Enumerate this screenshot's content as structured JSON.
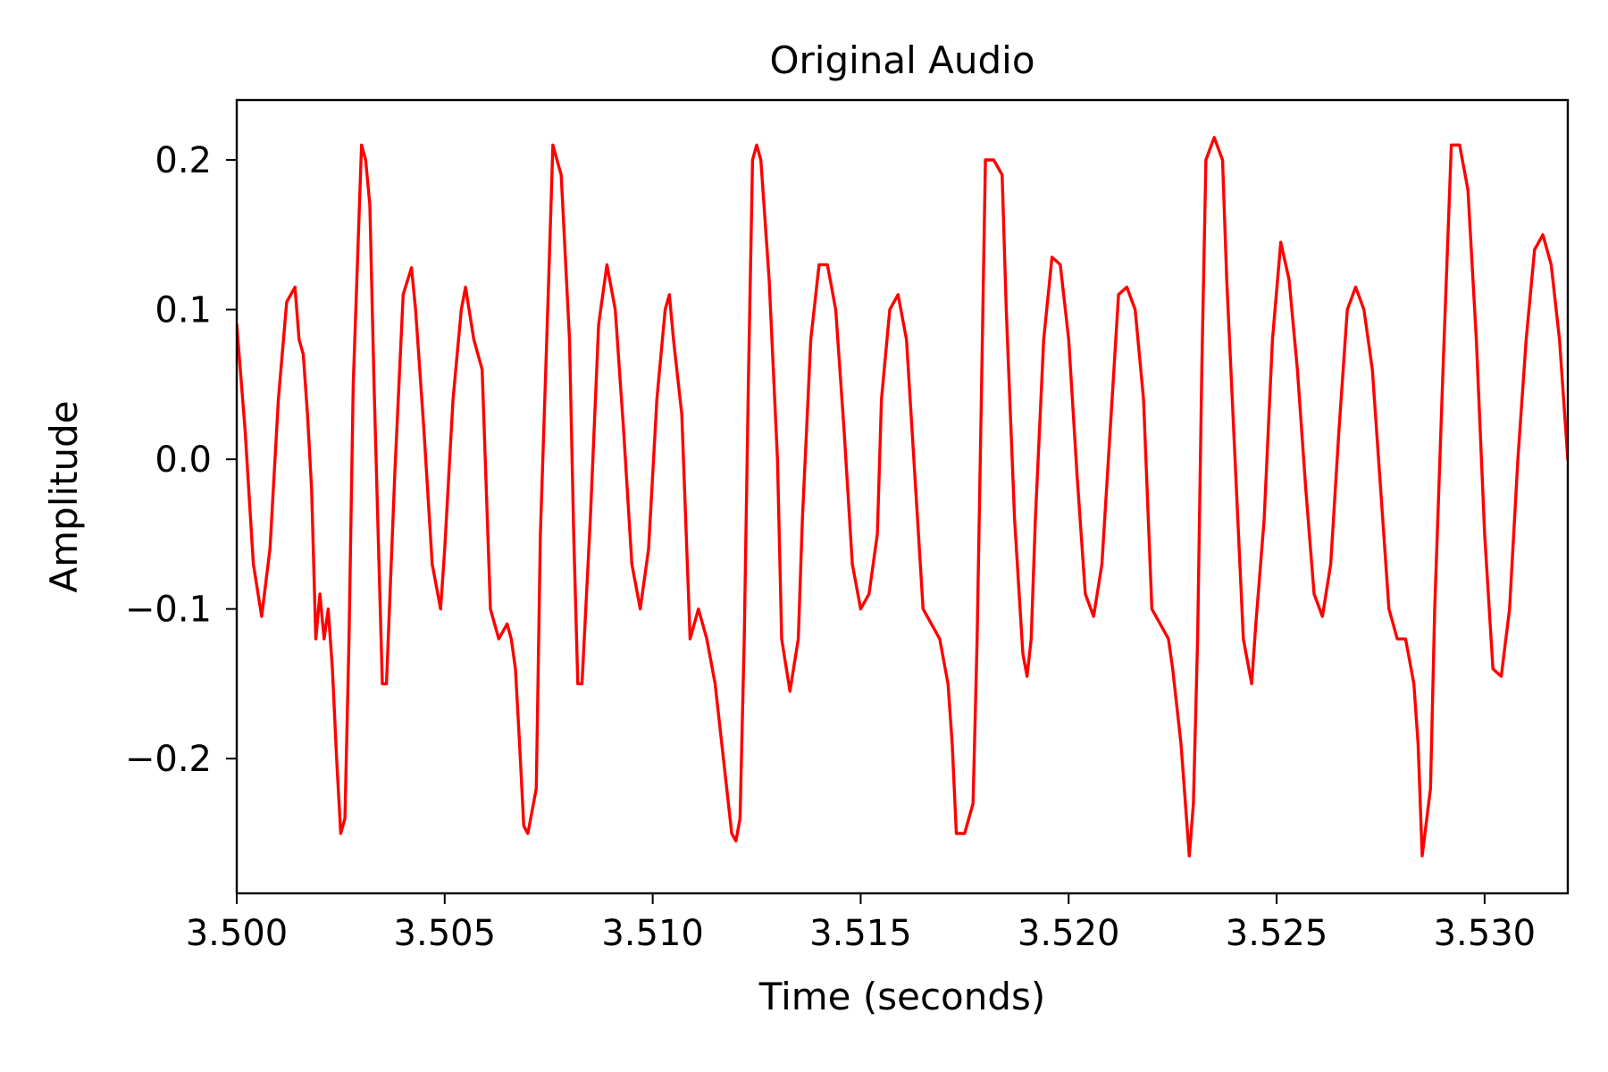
{
  "chart_data": {
    "type": "line",
    "title": "Original Audio",
    "xlabel": "Time (seconds)",
    "ylabel": "Amplitude",
    "xlim": [
      3.5,
      3.532
    ],
    "ylim": [
      -0.29,
      0.24
    ],
    "x_ticks": [
      3.5,
      3.505,
      3.51,
      3.515,
      3.52,
      3.525,
      3.53
    ],
    "x_tick_labels": [
      "3.500",
      "3.505",
      "3.510",
      "3.515",
      "3.520",
      "3.525",
      "3.530"
    ],
    "y_ticks": [
      -0.2,
      -0.1,
      0.0,
      0.1,
      0.2
    ],
    "y_tick_labels": [
      "−0.2",
      "−0.1",
      "0.0",
      "0.1",
      "0.2"
    ],
    "grid": false,
    "line_color": "#ff0000",
    "series": [
      {
        "x": [
          3.5,
          3.5002,
          3.5004,
          3.5006,
          3.5008,
          3.501,
          3.5012,
          3.5013,
          3.5014,
          3.5015,
          3.5016,
          3.5017,
          3.5018,
          3.5019,
          3.502,
          3.5021,
          3.5022,
          3.5023,
          3.5024,
          3.5025,
          3.5026,
          3.5027,
          3.5028,
          3.503,
          3.5031,
          3.5032,
          3.5033,
          3.5034,
          3.5035,
          3.5036,
          3.5038,
          3.504,
          3.5042,
          3.5043,
          3.5045,
          3.5047,
          3.5049,
          3.505,
          3.5052,
          3.5054,
          3.5055,
          3.5057,
          3.5059,
          3.5061,
          3.5063,
          3.5065,
          3.5066,
          3.5067,
          3.5068,
          3.5069,
          3.507,
          3.5072,
          3.5073,
          3.5075,
          3.5076,
          3.5077,
          3.5078,
          3.508,
          3.5081,
          3.5082,
          3.5083,
          3.5085,
          3.5087,
          3.5089,
          3.5091,
          3.5093,
          3.5095,
          3.5097,
          3.5099,
          3.5101,
          3.5103,
          3.5104,
          3.5105,
          3.5107,
          3.5109,
          3.5111,
          3.5113,
          3.5115,
          3.5117,
          3.5119,
          3.512,
          3.5121,
          3.5122,
          3.5123,
          3.5124,
          3.5125,
          3.5126,
          3.5128,
          3.513,
          3.5131,
          3.5133,
          3.5135,
          3.5136,
          3.5138,
          3.514,
          3.5142,
          3.5144,
          3.5146,
          3.5148,
          3.515,
          3.5152,
          3.5154,
          3.5155,
          3.5157,
          3.5159,
          3.5161,
          3.5163,
          3.5165,
          3.5167,
          3.5169,
          3.5171,
          3.5172,
          3.5173,
          3.5175,
          3.5177,
          3.5178,
          3.5179,
          3.518,
          3.5182,
          3.5184,
          3.5185,
          3.5187,
          3.5189,
          3.519,
          3.5191,
          3.5192,
          3.5194,
          3.5196,
          3.5198,
          3.52,
          3.5202,
          3.5204,
          3.5206,
          3.5208,
          3.521,
          3.5212,
          3.5214,
          3.5216,
          3.5218,
          3.522,
          3.5222,
          3.5224,
          3.5225,
          3.5227,
          3.5229,
          3.523,
          3.5231,
          3.5232,
          3.5233,
          3.5235,
          3.5237,
          3.5238,
          3.524,
          3.5242,
          3.5244,
          3.5245,
          3.5247,
          3.5249,
          3.5251,
          3.5253,
          3.5255,
          3.5257,
          3.5259,
          3.5261,
          3.5263,
          3.5265,
          3.5267,
          3.5269,
          3.5271,
          3.5273,
          3.5275,
          3.5277,
          3.5279,
          3.5281,
          3.5283,
          3.5284,
          3.5285,
          3.5287,
          3.5288,
          3.529,
          3.5292,
          3.5294,
          3.5296,
          3.5298,
          3.53,
          3.5302,
          3.5304,
          3.5306,
          3.5308,
          3.531,
          3.5312,
          3.5314,
          3.5316,
          3.5318,
          3.532
        ],
        "y": [
          0.09,
          0.02,
          -0.07,
          -0.105,
          -0.06,
          0.04,
          0.105,
          0.11,
          0.115,
          0.08,
          0.07,
          0.03,
          -0.02,
          -0.12,
          -0.09,
          -0.12,
          -0.1,
          -0.14,
          -0.2,
          -0.25,
          -0.24,
          -0.12,
          0.05,
          0.21,
          0.2,
          0.17,
          0.05,
          -0.05,
          -0.15,
          -0.15,
          -0.01,
          0.11,
          0.128,
          0.1,
          0.02,
          -0.07,
          -0.1,
          -0.06,
          0.04,
          0.1,
          0.115,
          0.08,
          0.06,
          -0.1,
          -0.12,
          -0.11,
          -0.12,
          -0.14,
          -0.19,
          -0.245,
          -0.25,
          -0.22,
          -0.05,
          0.12,
          0.21,
          0.2,
          0.19,
          0.08,
          -0.05,
          -0.15,
          -0.15,
          -0.04,
          0.09,
          0.13,
          0.1,
          0.02,
          -0.07,
          -0.1,
          -0.06,
          0.04,
          0.1,
          0.11,
          0.08,
          0.03,
          -0.12,
          -0.1,
          -0.12,
          -0.15,
          -0.2,
          -0.25,
          -0.255,
          -0.24,
          -0.12,
          0.05,
          0.2,
          0.21,
          0.2,
          0.12,
          0.0,
          -0.12,
          -0.155,
          -0.12,
          -0.04,
          0.08,
          0.13,
          0.13,
          0.1,
          0.02,
          -0.07,
          -0.1,
          -0.09,
          -0.05,
          0.04,
          0.1,
          0.11,
          0.08,
          -0.01,
          -0.1,
          -0.11,
          -0.12,
          -0.15,
          -0.19,
          -0.25,
          -0.25,
          -0.23,
          -0.12,
          0.04,
          0.2,
          0.2,
          0.19,
          0.1,
          -0.04,
          -0.13,
          -0.145,
          -0.12,
          -0.04,
          0.08,
          0.135,
          0.13,
          0.08,
          -0.01,
          -0.09,
          -0.105,
          -0.07,
          0.02,
          0.11,
          0.115,
          0.1,
          0.04,
          -0.1,
          -0.11,
          -0.12,
          -0.14,
          -0.19,
          -0.265,
          -0.23,
          -0.12,
          0.06,
          0.2,
          0.215,
          0.2,
          0.12,
          0.0,
          -0.12,
          -0.15,
          -0.11,
          -0.04,
          0.08,
          0.145,
          0.12,
          0.06,
          -0.02,
          -0.09,
          -0.105,
          -0.07,
          0.02,
          0.1,
          0.115,
          0.1,
          0.06,
          -0.02,
          -0.1,
          -0.12,
          -0.12,
          -0.15,
          -0.19,
          -0.265,
          -0.22,
          -0.1,
          0.06,
          0.21,
          0.21,
          0.18,
          0.08,
          -0.05,
          -0.14,
          -0.145,
          -0.1,
          0.0,
          0.08,
          0.14,
          0.15,
          0.13,
          0.08,
          0.0
        ]
      }
    ]
  }
}
